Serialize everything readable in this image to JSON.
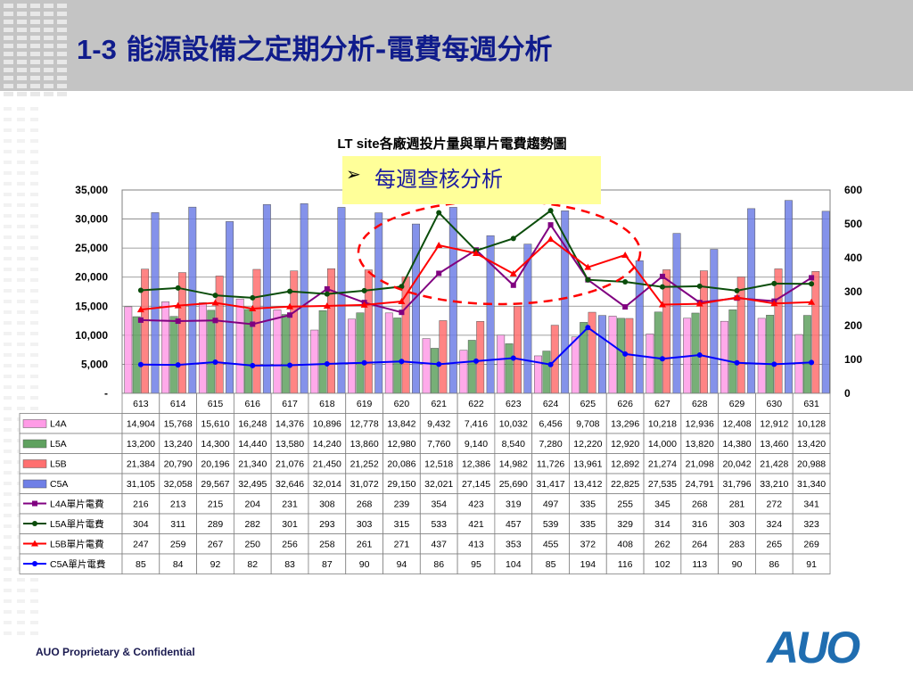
{
  "slide": {
    "title_prefix": "1-3",
    "title_rest": "能源設備之定期分析-電費每週分析",
    "footer": "AUO Proprietary & Confidential",
    "logo": "AUO"
  },
  "callout": {
    "marker": "➢",
    "text": "每週查核分析"
  },
  "colors": {
    "header_band": "#c4c4c4",
    "title": "#101c8c",
    "callout_bg": "#ffff99",
    "callout_text": "#1a1aa0",
    "highlight_ellipse": "#ff0000",
    "L4A": "#ff9be6",
    "L5A": "#5fa15f",
    "L5B": "#ff6f6f",
    "C5A": "#6f7fe6",
    "L4A_line": "#800080",
    "L5A_line": "#0b4d0b",
    "L5B_line": "#ff0000",
    "C5A_line": "#0000ff"
  },
  "chart_data": {
    "type": "bar",
    "title": "LT site各廠週投片量與單片電費趨勢圖",
    "categories": [
      "613",
      "614",
      "615",
      "616",
      "617",
      "618",
      "619",
      "620",
      "621",
      "622",
      "623",
      "624",
      "625",
      "626",
      "627",
      "628",
      "629",
      "630",
      "631"
    ],
    "ylim": [
      0,
      35000
    ],
    "y_ticks": [
      "-",
      "5,000",
      "10,000",
      "15,000",
      "20,000",
      "25,000",
      "30,000",
      "35,000"
    ],
    "y2lim": [
      0,
      600
    ],
    "y2_ticks": [
      "0",
      "100",
      "200",
      "300",
      "400",
      "500",
      "600"
    ],
    "series": [
      {
        "name": "L4A",
        "kind": "bar",
        "axis": "left",
        "values": [
          14904,
          15768,
          15610,
          16248,
          14376,
          10896,
          12778,
          13842,
          9432,
          7416,
          10032,
          6456,
          9708,
          13296,
          10218,
          12936,
          12408,
          12912,
          10128
        ],
        "labels": [
          "14,904",
          "15,768",
          "15,610",
          "16,248",
          "14,376",
          "10,896",
          "12,778",
          "13,842",
          "9,432",
          "7,416",
          "10,032",
          "6,456",
          "9,708",
          "13,296",
          "10,218",
          "12,936",
          "12,408",
          "12,912",
          "10,128"
        ]
      },
      {
        "name": "L5A",
        "kind": "bar",
        "axis": "left",
        "values": [
          13200,
          13240,
          14300,
          14440,
          13580,
          14240,
          13860,
          12980,
          7760,
          9140,
          8540,
          7280,
          12220,
          12920,
          14000,
          13820,
          14380,
          13460,
          13420
        ],
        "labels": [
          "13,200",
          "13,240",
          "14,300",
          "14,440",
          "13,580",
          "14,240",
          "13,860",
          "12,980",
          "7,760",
          "9,140",
          "8,540",
          "7,280",
          "12,220",
          "12,920",
          "14,000",
          "13,820",
          "14,380",
          "13,460",
          "13,420"
        ]
      },
      {
        "name": "L5B",
        "kind": "bar",
        "axis": "left",
        "values": [
          21384,
          20790,
          20196,
          21340,
          21076,
          21450,
          21252,
          20086,
          12518,
          12386,
          14982,
          11726,
          13961,
          12892,
          21274,
          21098,
          20042,
          21428,
          20988
        ],
        "labels": [
          "21,384",
          "20,790",
          "20,196",
          "21,340",
          "21,076",
          "21,450",
          "21,252",
          "20,086",
          "12,518",
          "12,386",
          "14,982",
          "11,726",
          "13,961",
          "12,892",
          "21,274",
          "21,098",
          "20,042",
          "21,428",
          "20,988"
        ]
      },
      {
        "name": "C5A",
        "kind": "bar",
        "axis": "left",
        "values": [
          31105,
          32058,
          29567,
          32495,
          32646,
          32014,
          31072,
          29150,
          32021,
          27145,
          25690,
          31417,
          13412,
          22825,
          27535,
          24791,
          31796,
          33210,
          31340
        ],
        "labels": [
          "31,105",
          "32,058",
          "29,567",
          "32,495",
          "32,646",
          "32,014",
          "31,072",
          "29,150",
          "32,021",
          "27,145",
          "25,690",
          "31,417",
          "13,412",
          "22,825",
          "27,535",
          "24,791",
          "31,796",
          "33,210",
          "31,340"
        ]
      },
      {
        "name": "L4A單片電費",
        "kind": "line",
        "axis": "right",
        "marker": "square",
        "values": [
          216,
          213,
          215,
          204,
          231,
          308,
          268,
          239,
          354,
          423,
          319,
          497,
          335,
          255,
          345,
          268,
          281,
          272,
          341
        ],
        "labels": [
          "216",
          "213",
          "215",
          "204",
          "231",
          "308",
          "268",
          "239",
          "354",
          "423",
          "319",
          "497",
          "335",
          "255",
          "345",
          "268",
          "281",
          "272",
          "341"
        ]
      },
      {
        "name": "L5A單片電費",
        "kind": "line",
        "axis": "right",
        "marker": "circle",
        "values": [
          304,
          311,
          289,
          282,
          301,
          293,
          303,
          315,
          533,
          421,
          457,
          539,
          335,
          329,
          314,
          316,
          303,
          324,
          323
        ],
        "labels": [
          "304",
          "311",
          "289",
          "282",
          "301",
          "293",
          "303",
          "315",
          "533",
          "421",
          "457",
          "539",
          "335",
          "329",
          "314",
          "316",
          "303",
          "324",
          "323"
        ]
      },
      {
        "name": "L5B單片電費",
        "kind": "line",
        "axis": "right",
        "marker": "triangle",
        "values": [
          247,
          259,
          267,
          250,
          256,
          258,
          261,
          271,
          437,
          413,
          353,
          455,
          372,
          408,
          262,
          264,
          283,
          265,
          269
        ],
        "labels": [
          "247",
          "259",
          "267",
          "250",
          "256",
          "258",
          "261",
          "271",
          "437",
          "413",
          "353",
          "455",
          "372",
          "408",
          "262",
          "264",
          "283",
          "265",
          "269"
        ]
      },
      {
        "name": "C5A單片電費",
        "kind": "line",
        "axis": "right",
        "marker": "circle",
        "values": [
          85,
          84,
          92,
          82,
          83,
          87,
          90,
          94,
          86,
          95,
          104,
          85,
          194,
          116,
          102,
          113,
          90,
          86,
          91
        ],
        "labels": [
          "85",
          "84",
          "92",
          "82",
          "83",
          "87",
          "90",
          "94",
          "86",
          "95",
          "104",
          "85",
          "194",
          "116",
          "102",
          "113",
          "90",
          "86",
          "91"
        ]
      }
    ]
  }
}
